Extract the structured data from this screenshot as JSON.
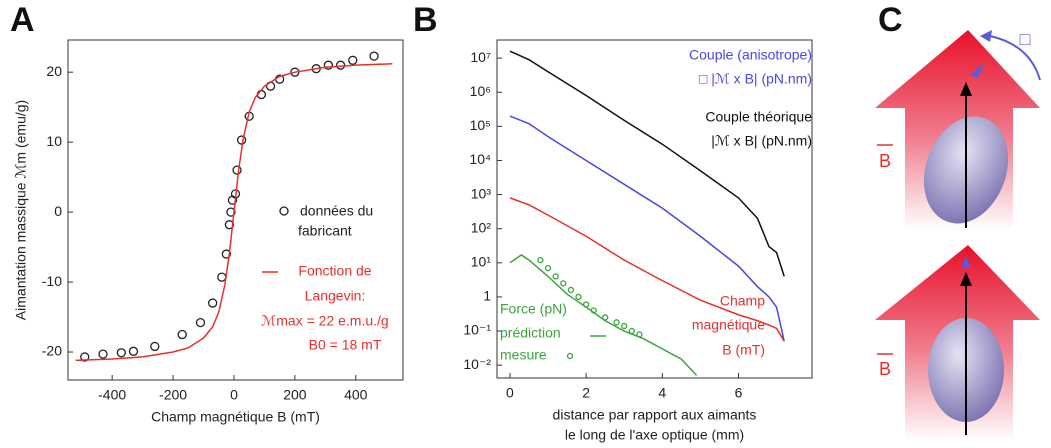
{
  "panel_labels": [
    "A",
    "B",
    "C"
  ],
  "chart_data": [
    {
      "type": "scatter",
      "xlabel": "Champ magnétique B (mT)",
      "ylabel": "Aimantation massique ℳm (emu/g)",
      "xlim": [
        -545,
        555
      ],
      "ylim": [
        -24,
        24.6
      ],
      "xticks": [
        -400,
        -200,
        0,
        200,
        400
      ],
      "yticks": [
        -20,
        -10,
        0,
        10,
        20
      ],
      "series": [
        {
          "mode": "scatter",
          "color": "#222222",
          "x": [
            -490,
            -430,
            -370,
            -330,
            -260,
            -170,
            -110,
            -70,
            -40,
            -25,
            -15,
            -10,
            -5,
            5,
            10,
            25,
            50,
            90,
            120,
            150,
            200,
            270,
            310,
            350,
            390,
            460
          ],
          "values": [
            -20.7,
            -20.3,
            -20.1,
            -19.9,
            -19.2,
            -17.5,
            -15.8,
            -13,
            -9.3,
            -6,
            -1.8,
            0,
            1.7,
            2.6,
            6,
            10.3,
            13.7,
            16.8,
            18,
            19,
            20,
            20.5,
            21,
            21,
            21.7,
            22.3
          ]
        },
        {
          "mode": "line",
          "color": "#e8302a",
          "x": [
            -520,
            -400,
            -300,
            -200,
            -150,
            -100,
            -70,
            -50,
            -30,
            -15,
            0,
            15,
            30,
            50,
            70,
            100,
            150,
            200,
            300,
            400,
            520
          ],
          "values": [
            -21.2,
            -21.0,
            -20.7,
            -20.0,
            -19.4,
            -18.0,
            -16.4,
            -14.3,
            -10.4,
            -5.9,
            0,
            5.9,
            10.4,
            14.3,
            16.4,
            18.0,
            19.4,
            20.0,
            20.7,
            21.0,
            21.2
          ]
        }
      ],
      "annotations": [
        {
          "text": "données du",
          "color": "#222222"
        },
        {
          "text": "fabricant",
          "color": "#222222"
        },
        {
          "text": "Fonction de",
          "color": "#e8302a"
        },
        {
          "text": "Langevin:",
          "color": "#e8302a"
        },
        {
          "text": "ℳmax = 22 e.m.u./g",
          "color": "#e8302a"
        },
        {
          "text": "B0 = 18 mT",
          "color": "#e8302a"
        }
      ]
    },
    {
      "type": "line",
      "log_y": true,
      "xlabel": "distance par rapport aux aimants",
      "xlabel2": "le long de l'axe optique (mm)",
      "xlim": [
        -0.34,
        7.93
      ],
      "ylim": [
        0.0042,
        34000000
      ],
      "xticks": [
        0,
        2,
        4,
        6
      ],
      "yticks": [
        {
          "value": 0.01,
          "label": "10⁻²"
        },
        {
          "value": 0.1,
          "label": "10⁻¹"
        },
        1,
        {
          "value": 10,
          "label": "10¹"
        },
        {
          "value": 100,
          "label": "10²"
        },
        {
          "value": 1000,
          "label": "10³"
        },
        {
          "value": 10000,
          "label": "10⁴"
        },
        {
          "value": 100000,
          "label": "10⁵"
        },
        {
          "value": 1000000,
          "label": "10⁶"
        },
        {
          "value": 10000000,
          "label": "10⁷"
        }
      ],
      "series": [
        {
          "mode": "line",
          "color": "#111111",
          "x": [
            0,
            0.5,
            1,
            2,
            3,
            4,
            5,
            6,
            6.5,
            6.8,
            7,
            7.2
          ],
          "values": [
            16000000,
            9000000,
            4000000,
            800000,
            150000,
            30000,
            5000,
            800,
            200,
            30,
            20,
            4
          ]
        },
        {
          "mode": "line",
          "color": "#4848e0",
          "x": [
            0,
            0.5,
            1,
            2,
            3,
            4,
            5,
            6,
            6.5,
            6.8,
            7,
            7.2
          ],
          "values": [
            200000,
            120000,
            50000,
            10000,
            2000,
            400,
            60,
            8,
            2,
            1,
            0.5,
            0.05
          ]
        },
        {
          "mode": "line",
          "color": "#e8302a",
          "x": [
            0,
            0.5,
            1,
            2,
            3,
            4,
            5,
            6,
            6.5,
            6.8,
            7,
            7.2
          ],
          "values": [
            800,
            500,
            250,
            60,
            12,
            3,
            0.8,
            0.3,
            0.2,
            0.15,
            0.12,
            0.05
          ]
        },
        {
          "mode": "line",
          "color": "#3aa53a",
          "x": [
            0,
            0.3,
            0.5,
            1,
            1.5,
            2,
            2.5,
            3,
            3.5,
            4,
            4.5,
            4.9
          ],
          "values": [
            10,
            17,
            12,
            4,
            1.2,
            0.5,
            0.2,
            0.1,
            0.06,
            0.03,
            0.015,
            0.005
          ]
        },
        {
          "mode": "scatter",
          "color": "#3aa53a",
          "x": [
            0.8,
            1.0,
            1.2,
            1.4,
            1.6,
            1.8,
            2.0,
            2.2,
            2.5,
            2.8,
            3.0,
            3.2,
            3.4
          ],
          "values": [
            12,
            7,
            4,
            2.5,
            1.6,
            1.0,
            0.6,
            0.4,
            0.25,
            0.18,
            0.14,
            0.1,
            0.08
          ]
        }
      ],
      "annotations": [
        {
          "text": "Couple (anisotrope)",
          "color": "#4848e0"
        },
        {
          "text": "□ |ℳ x B| (pN.nm)",
          "color": "#4848e0"
        },
        {
          "text": "Couple théorique",
          "color": "#111111"
        },
        {
          "text": "|ℳ x B| (pN.nm)",
          "color": "#111111"
        },
        {
          "text": "Force (pN)",
          "color": "#3aa53a"
        },
        {
          "text": "prédiction",
          "color": "#3aa53a"
        },
        {
          "text": "mesure",
          "color": "#3aa53a"
        },
        {
          "text": "Champ",
          "color": "#e8302a"
        },
        {
          "text": "magnétique",
          "color": "#e8302a"
        },
        {
          "text": "B (mT)",
          "color": "#e8302a"
        }
      ]
    }
  ],
  "diagram": {
    "labels": [
      "B",
      "B",
      "□"
    ]
  }
}
